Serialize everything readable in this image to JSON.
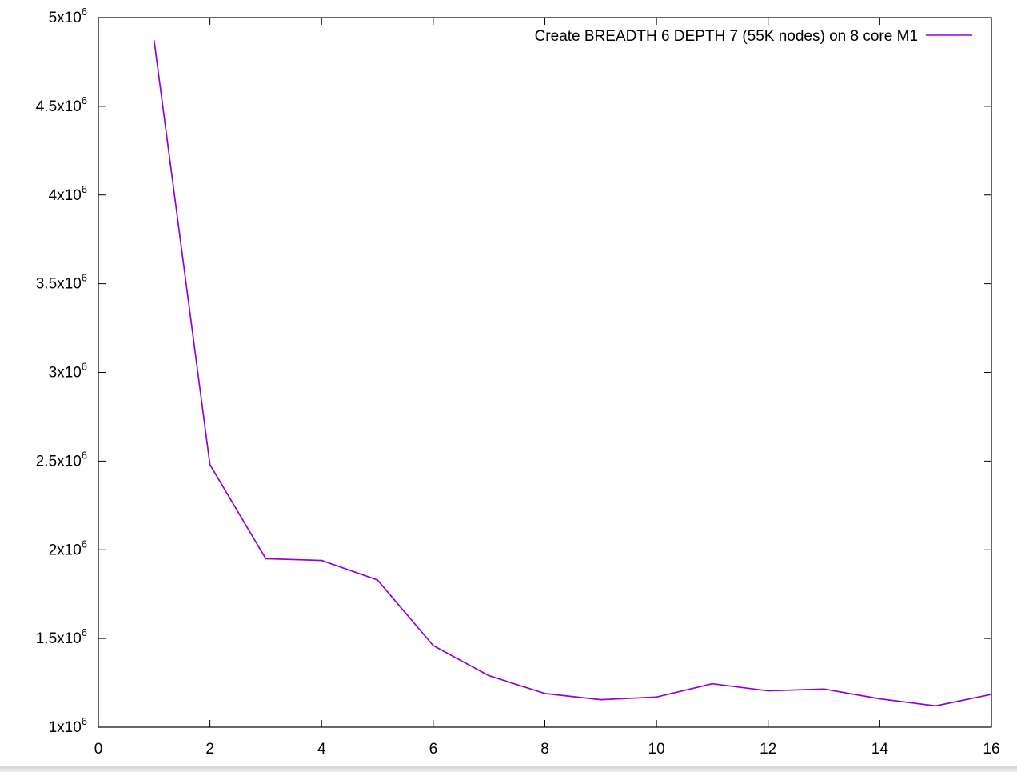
{
  "chart_data": {
    "type": "line",
    "title": "",
    "xlabel": "",
    "ylabel": "",
    "xlim": [
      0,
      16
    ],
    "ylim": [
      1000000,
      5000000
    ],
    "grid": false,
    "legend_position": "top-right",
    "x_ticks": [
      {
        "value": 0,
        "label": "0"
      },
      {
        "value": 2,
        "label": "2"
      },
      {
        "value": 4,
        "label": "4"
      },
      {
        "value": 6,
        "label": "6"
      },
      {
        "value": 8,
        "label": "8"
      },
      {
        "value": 10,
        "label": "10"
      },
      {
        "value": 12,
        "label": "12"
      },
      {
        "value": 14,
        "label": "14"
      },
      {
        "value": 16,
        "label": "16"
      }
    ],
    "y_ticks": [
      {
        "value": 1000000,
        "mantissa": "1x10",
        "exp": "6"
      },
      {
        "value": 1500000,
        "mantissa": "1.5x10",
        "exp": "6"
      },
      {
        "value": 2000000,
        "mantissa": "2x10",
        "exp": "6"
      },
      {
        "value": 2500000,
        "mantissa": "2.5x10",
        "exp": "6"
      },
      {
        "value": 3000000,
        "mantissa": "3x10",
        "exp": "6"
      },
      {
        "value": 3500000,
        "mantissa": "3.5x10",
        "exp": "6"
      },
      {
        "value": 4000000,
        "mantissa": "4x10",
        "exp": "6"
      },
      {
        "value": 4500000,
        "mantissa": "4.5x10",
        "exp": "6"
      },
      {
        "value": 5000000,
        "mantissa": "5x10",
        "exp": "6"
      }
    ],
    "series": [
      {
        "name": "Create BREADTH 6 DEPTH 7 (55K nodes) on 8 core M1",
        "color": "#9400d3",
        "x": [
          1,
          2,
          3,
          4,
          5,
          6,
          7,
          8,
          9,
          10,
          11,
          12,
          13,
          14,
          15,
          16
        ],
        "y": [
          4870000,
          2480000,
          1950000,
          1940000,
          1830000,
          1460000,
          1290000,
          1190000,
          1155000,
          1170000,
          1245000,
          1205000,
          1215000,
          1160000,
          1120000,
          1185000
        ]
      }
    ]
  }
}
